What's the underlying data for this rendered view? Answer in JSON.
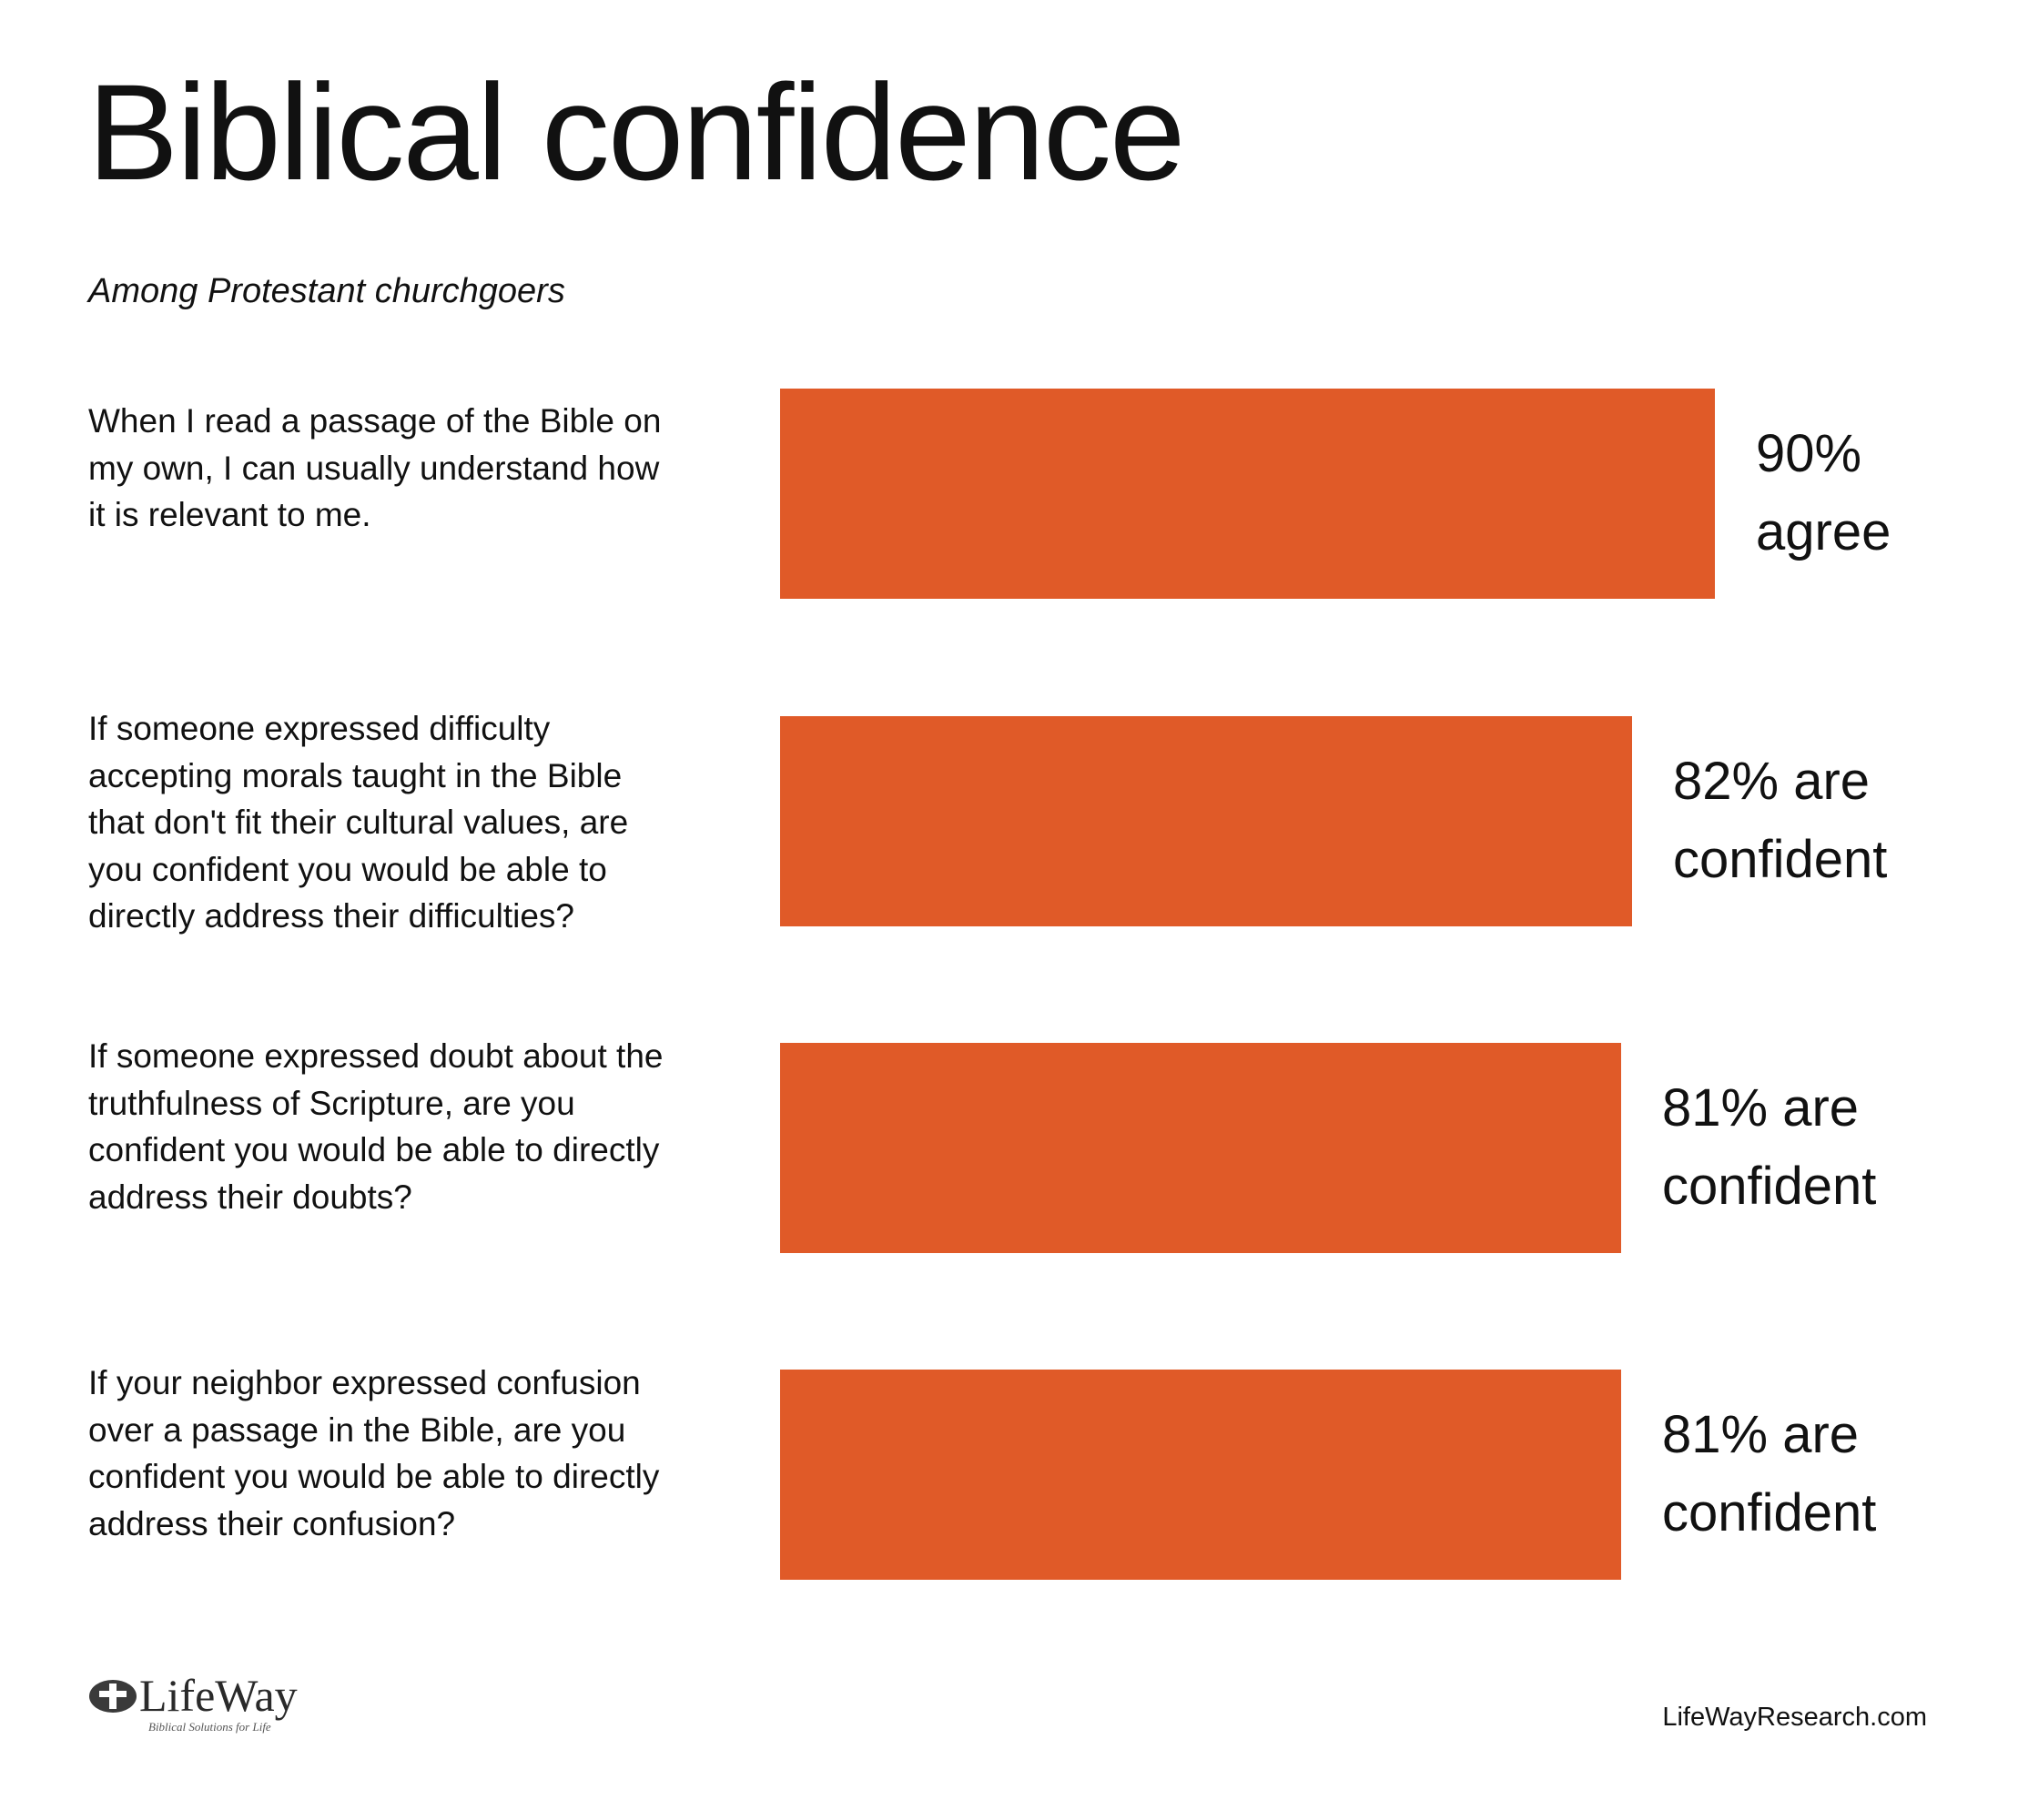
{
  "header": {
    "title": "Biblical confidence",
    "subtitle": "Among Protestant churchgoers"
  },
  "chart_data": {
    "type": "bar",
    "orientation": "horizontal",
    "categories": [
      "When I read a passage of the Bible on my own, I can usually understand how it is relevant to me.",
      "If someone expressed difficulty accepting morals taught in the Bible that don't fit their cultural values, are you confident you would be able to directly address their difficulties?",
      "If someone expressed doubt about the truthfulness of Scripture, are you confident you would be able to directly address their doubts?",
      "If your neighbor expressed confusion over a passage in the Bible, are you confident you would be able to directly address their confusion?"
    ],
    "statement_lines": [
      [
        "When I read a passage of the Bible on",
        "my own, I can usually understand how",
        "it is relevant to me."
      ],
      [
        "If someone expressed difficulty",
        "accepting morals taught in the Bible",
        "that don't fit their cultural values, are",
        "you confident you would be able to",
        "directly address their difficulties?"
      ],
      [
        "If someone expressed doubt about the",
        "truthfulness of Scripture, are you",
        "confident you would be able to directly",
        "address their doubts?"
      ],
      [
        "If your neighbor expressed confusion",
        "over a passage in the Bible, are you",
        "confident you would be able to directly",
        "address their confusion?"
      ]
    ],
    "values": [
      90,
      82,
      81,
      81
    ],
    "unit": "%",
    "data_labels": [
      [
        "90%",
        "agree"
      ],
      [
        "82% are",
        "confident"
      ],
      [
        "81% are",
        "confident"
      ],
      [
        "81% are",
        "confident"
      ]
    ],
    "xlim": [
      0,
      100
    ],
    "grid": false,
    "legend": "none",
    "bar_color": "#E05A28"
  },
  "footer": {
    "logo_text": "LifeWay",
    "logo_tagline": "Biblical Solutions for Life",
    "website": "LifeWayResearch.com"
  }
}
